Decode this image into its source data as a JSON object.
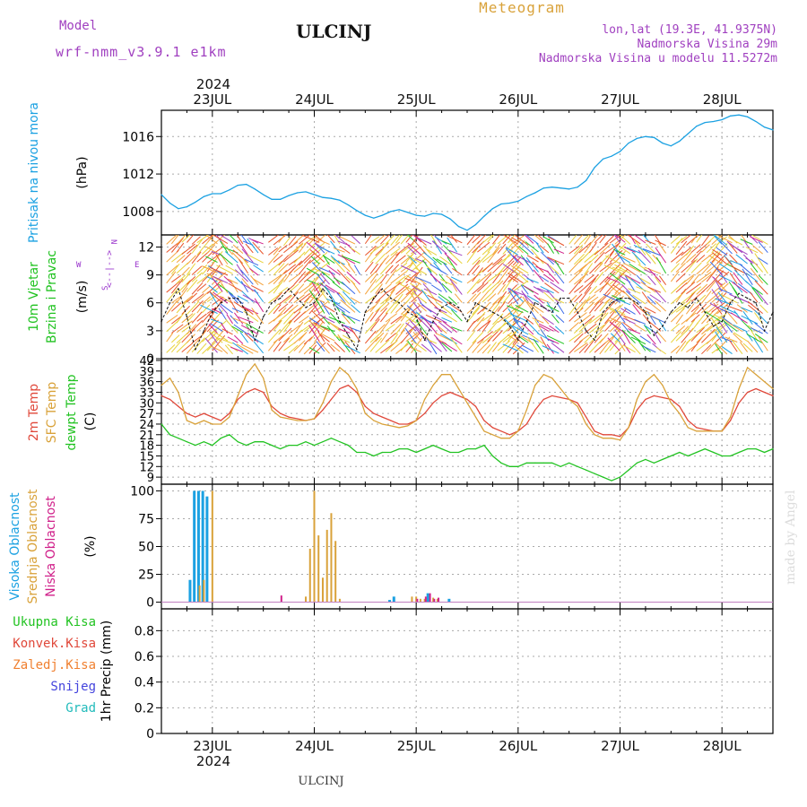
{
  "header": {
    "model_label": "Model",
    "model_name": "wrf-nmm_v3.9.1 e1km",
    "station": "ULCINJ",
    "title": "Meteogram",
    "lonlat": "lon,lat (19.3E, 41.9375N)",
    "elevation": "Nadmorska Visina 29m",
    "elevation_model": "Nadmorska Visina u modelu 11.5272m"
  },
  "footer": {
    "station": "ULCINJ",
    "credit": "made by Angel"
  },
  "colors": {
    "pressure": "#1ba1e2",
    "temp2m": "#e0483a",
    "sfc": "#d9a23a",
    "dew": "#22c322",
    "high_cloud": "#1ba1e2",
    "mid_cloud": "#d9a23a",
    "low_cloud": "#d0208a",
    "total_precip": "#22c322",
    "conv_precip": "#e0483a",
    "frz_precip": "#f08030",
    "snow": "#4444dd",
    "grad": "#22bbbb",
    "compass": "#9933cc"
  },
  "chart_data": {
    "type": "line",
    "x_start": "2024-07-22 12:00",
    "x_end": "2024-07-28 12:00",
    "x_tick_labels": [
      "23JUL",
      "24JUL",
      "25JUL",
      "26JUL",
      "27JUL",
      "28JUL"
    ],
    "year_label": "2024",
    "panels": [
      {
        "name": "pressure",
        "ylabel_lines": [
          "Pritisak na nivou mora",
          "(hPa)"
        ],
        "yticks": [
          1008,
          1012,
          1016
        ],
        "ylim": [
          1005.5,
          1018.8
        ],
        "series": [
          {
            "x_hours": [
              0,
              2,
              4,
              6,
              8,
              10,
              12,
              14,
              16,
              18,
              20,
              22,
              24,
              26,
              28,
              30,
              32,
              34,
              36,
              38,
              40,
              42,
              44,
              46,
              48,
              50,
              52,
              54,
              56,
              58,
              60,
              62,
              64,
              66,
              68,
              70,
              72,
              74,
              76,
              78,
              80,
              82,
              84,
              86,
              88,
              90,
              92,
              94,
              96,
              98,
              100,
              102,
              104,
              106,
              108,
              110,
              112,
              114,
              116,
              118,
              120,
              122,
              124,
              126,
              128,
              130,
              132,
              134,
              136,
              138,
              140,
              142,
              144
            ],
            "y": [
              1009.8,
              1008.9,
              1008.3,
              1008.5,
              1009.0,
              1009.6,
              1009.9,
              1009.9,
              1010.3,
              1010.8,
              1010.9,
              1010.4,
              1009.8,
              1009.3,
              1009.3,
              1009.7,
              1010.0,
              1010.1,
              1009.8,
              1009.5,
              1009.4,
              1009.2,
              1008.7,
              1008.1,
              1007.6,
              1007.3,
              1007.6,
              1008.0,
              1008.2,
              1007.9,
              1007.6,
              1007.5,
              1007.8,
              1007.7,
              1007.2,
              1006.4,
              1006.0,
              1006.6,
              1007.5,
              1008.3,
              1008.8,
              1008.9,
              1009.1,
              1009.6,
              1010.0,
              1010.5,
              1010.6,
              1010.5,
              1010.4,
              1010.6,
              1011.3,
              1012.7,
              1013.6,
              1013.9,
              1014.4,
              1015.3,
              1015.8,
              1016.0,
              1015.9,
              1015.3,
              1015.0,
              1015.5,
              1016.3,
              1017.1,
              1017.5,
              1017.6,
              1017.8,
              1018.2,
              1018.3,
              1018.1,
              1017.6,
              1017.0,
              1016.7
            ]
          }
        ]
      },
      {
        "name": "wind",
        "ylabel_lines": [
          "10m Vjetar",
          "Brzina i Pravac",
          "(m/s)"
        ],
        "compass": {
          "n": "N",
          "w": "W",
          "e": "E",
          "s": "S",
          "arrows": "<--|-->"
        },
        "yticks": [
          0,
          3,
          6,
          9,
          12
        ],
        "ylim": [
          0,
          13.3
        ],
        "series": [
          {
            "x_hours": [
              0,
              2,
              4,
              6,
              8,
              10,
              12,
              14,
              16,
              18,
              20,
              22,
              24,
              26,
              28,
              30,
              32,
              34,
              36,
              38,
              40,
              42,
              44,
              46,
              48,
              50,
              52,
              54,
              56,
              58,
              60,
              62,
              64,
              66,
              68,
              70,
              72,
              74,
              76,
              78,
              80,
              82,
              84,
              86,
              88,
              90,
              92,
              94,
              96,
              98,
              100,
              102,
              104,
              106,
              108,
              110,
              112,
              114,
              116,
              118,
              120,
              122,
              124,
              126,
              128,
              130,
              132,
              134,
              136,
              138,
              140,
              142,
              144
            ],
            "y": [
              4,
              6,
              7.5,
              4.5,
              1,
              3,
              5,
              6,
              6.5,
              6.5,
              5,
              2,
              4.5,
              6,
              6.5,
              7.5,
              6.5,
              5.5,
              6,
              7.5,
              6.5,
              4,
              2.5,
              1,
              5,
              6.5,
              7.5,
              6.5,
              6,
              5,
              4.5,
              2,
              4,
              5.5,
              6,
              5.5,
              4,
              6,
              5.5,
              5,
              4.5,
              3.5,
              2,
              4,
              6,
              5.5,
              5,
              6.5,
              6.5,
              5,
              3,
              2,
              5,
              6,
              6.5,
              6.5,
              6,
              5,
              2.5,
              3.5,
              5,
              6,
              5.5,
              6.5,
              5,
              3.5,
              4,
              6,
              7,
              6.5,
              6,
              3,
              5
            ]
          }
        ]
      },
      {
        "name": "temperature",
        "ylabel_lines": [
          "2m Temp",
          "SFC Temp",
          "dewpt Temp",
          "(C)"
        ],
        "yticks": [
          9,
          12,
          15,
          18,
          21,
          24,
          27,
          30,
          33,
          36,
          39,
          42
        ],
        "ylim": [
          7,
          42.5
        ],
        "series": [
          {
            "name": "2m Temp",
            "x_hours": [
              0,
              2,
              4,
              6,
              8,
              10,
              12,
              14,
              16,
              18,
              20,
              22,
              24,
              26,
              28,
              30,
              32,
              34,
              36,
              38,
              40,
              42,
              44,
              46,
              48,
              50,
              52,
              54,
              56,
              58,
              60,
              62,
              64,
              66,
              68,
              70,
              72,
              74,
              76,
              78,
              80,
              82,
              84,
              86,
              88,
              90,
              92,
              94,
              96,
              98,
              100,
              102,
              104,
              106,
              108,
              110,
              112,
              114,
              116,
              118,
              120,
              122,
              124,
              126,
              128,
              130,
              132,
              134,
              136,
              138,
              140,
              142,
              144
            ],
            "y": [
              32,
              31,
              29,
              27,
              26,
              27,
              26,
              25,
              27,
              31,
              33,
              34,
              33,
              29,
              27,
              26,
              25.5,
              25,
              25.5,
              28,
              31,
              34,
              35,
              33,
              29,
              27,
              26,
              25,
              24,
              24,
              25,
              27,
              30,
              32,
              33,
              32,
              31,
              29,
              25,
              23,
              22,
              21,
              22,
              24,
              28,
              31,
              32,
              31.5,
              31,
              30,
              26,
              22,
              21,
              21,
              20.5,
              23,
              28,
              31,
              32,
              31.5,
              31,
              29,
              25,
              23,
              22.5,
              22,
              22,
              25,
              30,
              33,
              34,
              33,
              32
            ]
          },
          {
            "name": "SFC Temp",
            "x_hours": [
              0,
              2,
              4,
              6,
              8,
              10,
              12,
              14,
              16,
              18,
              20,
              22,
              24,
              26,
              28,
              30,
              32,
              34,
              36,
              38,
              40,
              42,
              44,
              46,
              48,
              50,
              52,
              54,
              56,
              58,
              60,
              62,
              64,
              66,
              68,
              70,
              72,
              74,
              76,
              78,
              80,
              82,
              84,
              86,
              88,
              90,
              92,
              94,
              96,
              98,
              100,
              102,
              104,
              106,
              108,
              110,
              112,
              114,
              116,
              118,
              120,
              122,
              124,
              126,
              128,
              130,
              132,
              134,
              136,
              138,
              140,
              142,
              144
            ],
            "y": [
              35,
              37,
              33,
              25,
              24,
              25,
              24,
              24,
              26,
              32,
              38,
              41,
              37,
              28,
              26,
              25.5,
              25,
              25,
              25.5,
              30,
              36,
              40,
              38,
              34,
              27,
              25,
              24,
              23.5,
              23,
              23.5,
              25,
              31,
              35,
              38,
              38,
              34,
              30,
              26,
              22,
              21,
              20,
              20,
              22,
              28,
              35,
              38,
              37,
              34,
              31,
              29,
              24,
              21,
              20,
              20,
              19.5,
              23,
              31,
              36,
              38,
              35,
              30,
              27,
              23,
              22,
              22,
              22,
              22,
              26,
              34,
              40,
              38,
              36,
              34
            ]
          },
          {
            "name": "dewpt Temp",
            "x_hours": [
              0,
              2,
              4,
              6,
              8,
              10,
              12,
              14,
              16,
              18,
              20,
              22,
              24,
              26,
              28,
              30,
              32,
              34,
              36,
              38,
              40,
              42,
              44,
              46,
              48,
              50,
              52,
              54,
              56,
              58,
              60,
              62,
              64,
              66,
              68,
              70,
              72,
              74,
              76,
              78,
              80,
              82,
              84,
              86,
              88,
              90,
              92,
              94,
              96,
              98,
              100,
              102,
              104,
              106,
              108,
              110,
              112,
              114,
              116,
              118,
              120,
              122,
              124,
              126,
              128,
              130,
              132,
              134,
              136,
              138,
              140,
              142,
              144
            ],
            "y": [
              24,
              21,
              20,
              19,
              18,
              19,
              18,
              20,
              21,
              19,
              18,
              19,
              19,
              18,
              17,
              18,
              18,
              19,
              18,
              19,
              20,
              19,
              18,
              16,
              16,
              15,
              16,
              16,
              17,
              17,
              16,
              17,
              18,
              17,
              16,
              16,
              17,
              17,
              18,
              15,
              13,
              12,
              12,
              13,
              13,
              13,
              13,
              12,
              13,
              12,
              11,
              10,
              9,
              8,
              9,
              11,
              13,
              14,
              13,
              14,
              15,
              16,
              15,
              16,
              17,
              16,
              15,
              15,
              16,
              17,
              17,
              16,
              17
            ]
          }
        ]
      },
      {
        "name": "cloud",
        "ylabel_lines": [
          "Visoka Oblacnost",
          "Srednja Oblacnost",
          "Niska Oblacnost",
          "(%)"
        ],
        "yticks": [
          0,
          25,
          50,
          75,
          100
        ],
        "ylim": [
          -6,
          106
        ],
        "series": [
          {
            "name": "Visoka Oblacnost",
            "x_hours": [
              7,
              8,
              9,
              10,
              11,
              54,
              55,
              63,
              68
            ],
            "y": [
              20,
              100,
              100,
              100,
              95,
              2,
              5,
              8,
              3
            ]
          },
          {
            "name": "Srednja Oblacnost",
            "x_hours": [
              9,
              10,
              12,
              34,
              35,
              36,
              37,
              38,
              39,
              40,
              41,
              42,
              59,
              60,
              61,
              62,
              64,
              65
            ],
            "y": [
              15,
              20,
              100,
              5,
              48,
              100,
              60,
              22,
              65,
              80,
              55,
              3,
              5,
              5,
              3,
              3,
              4,
              3
            ]
          },
          {
            "name": "Niska Oblacnost",
            "x_hours": [
              28,
              60,
              62,
              63,
              64,
              65
            ],
            "y": [
              6,
              3,
              5,
              8,
              3,
              4
            ]
          }
        ]
      },
      {
        "name": "precip",
        "ylabel_lines": [
          "1hr Precip (mm)"
        ],
        "legend": [
          "Ukupna Kisa",
          "Konvek.Kisa",
          "Zaledj.Kisa",
          "Snijeg",
          "Grad"
        ],
        "yticks": [
          0,
          0.2,
          0.4,
          0.6,
          0.8
        ],
        "ylim": [
          0,
          0.97
        ],
        "series": []
      }
    ],
    "grid": true
  }
}
